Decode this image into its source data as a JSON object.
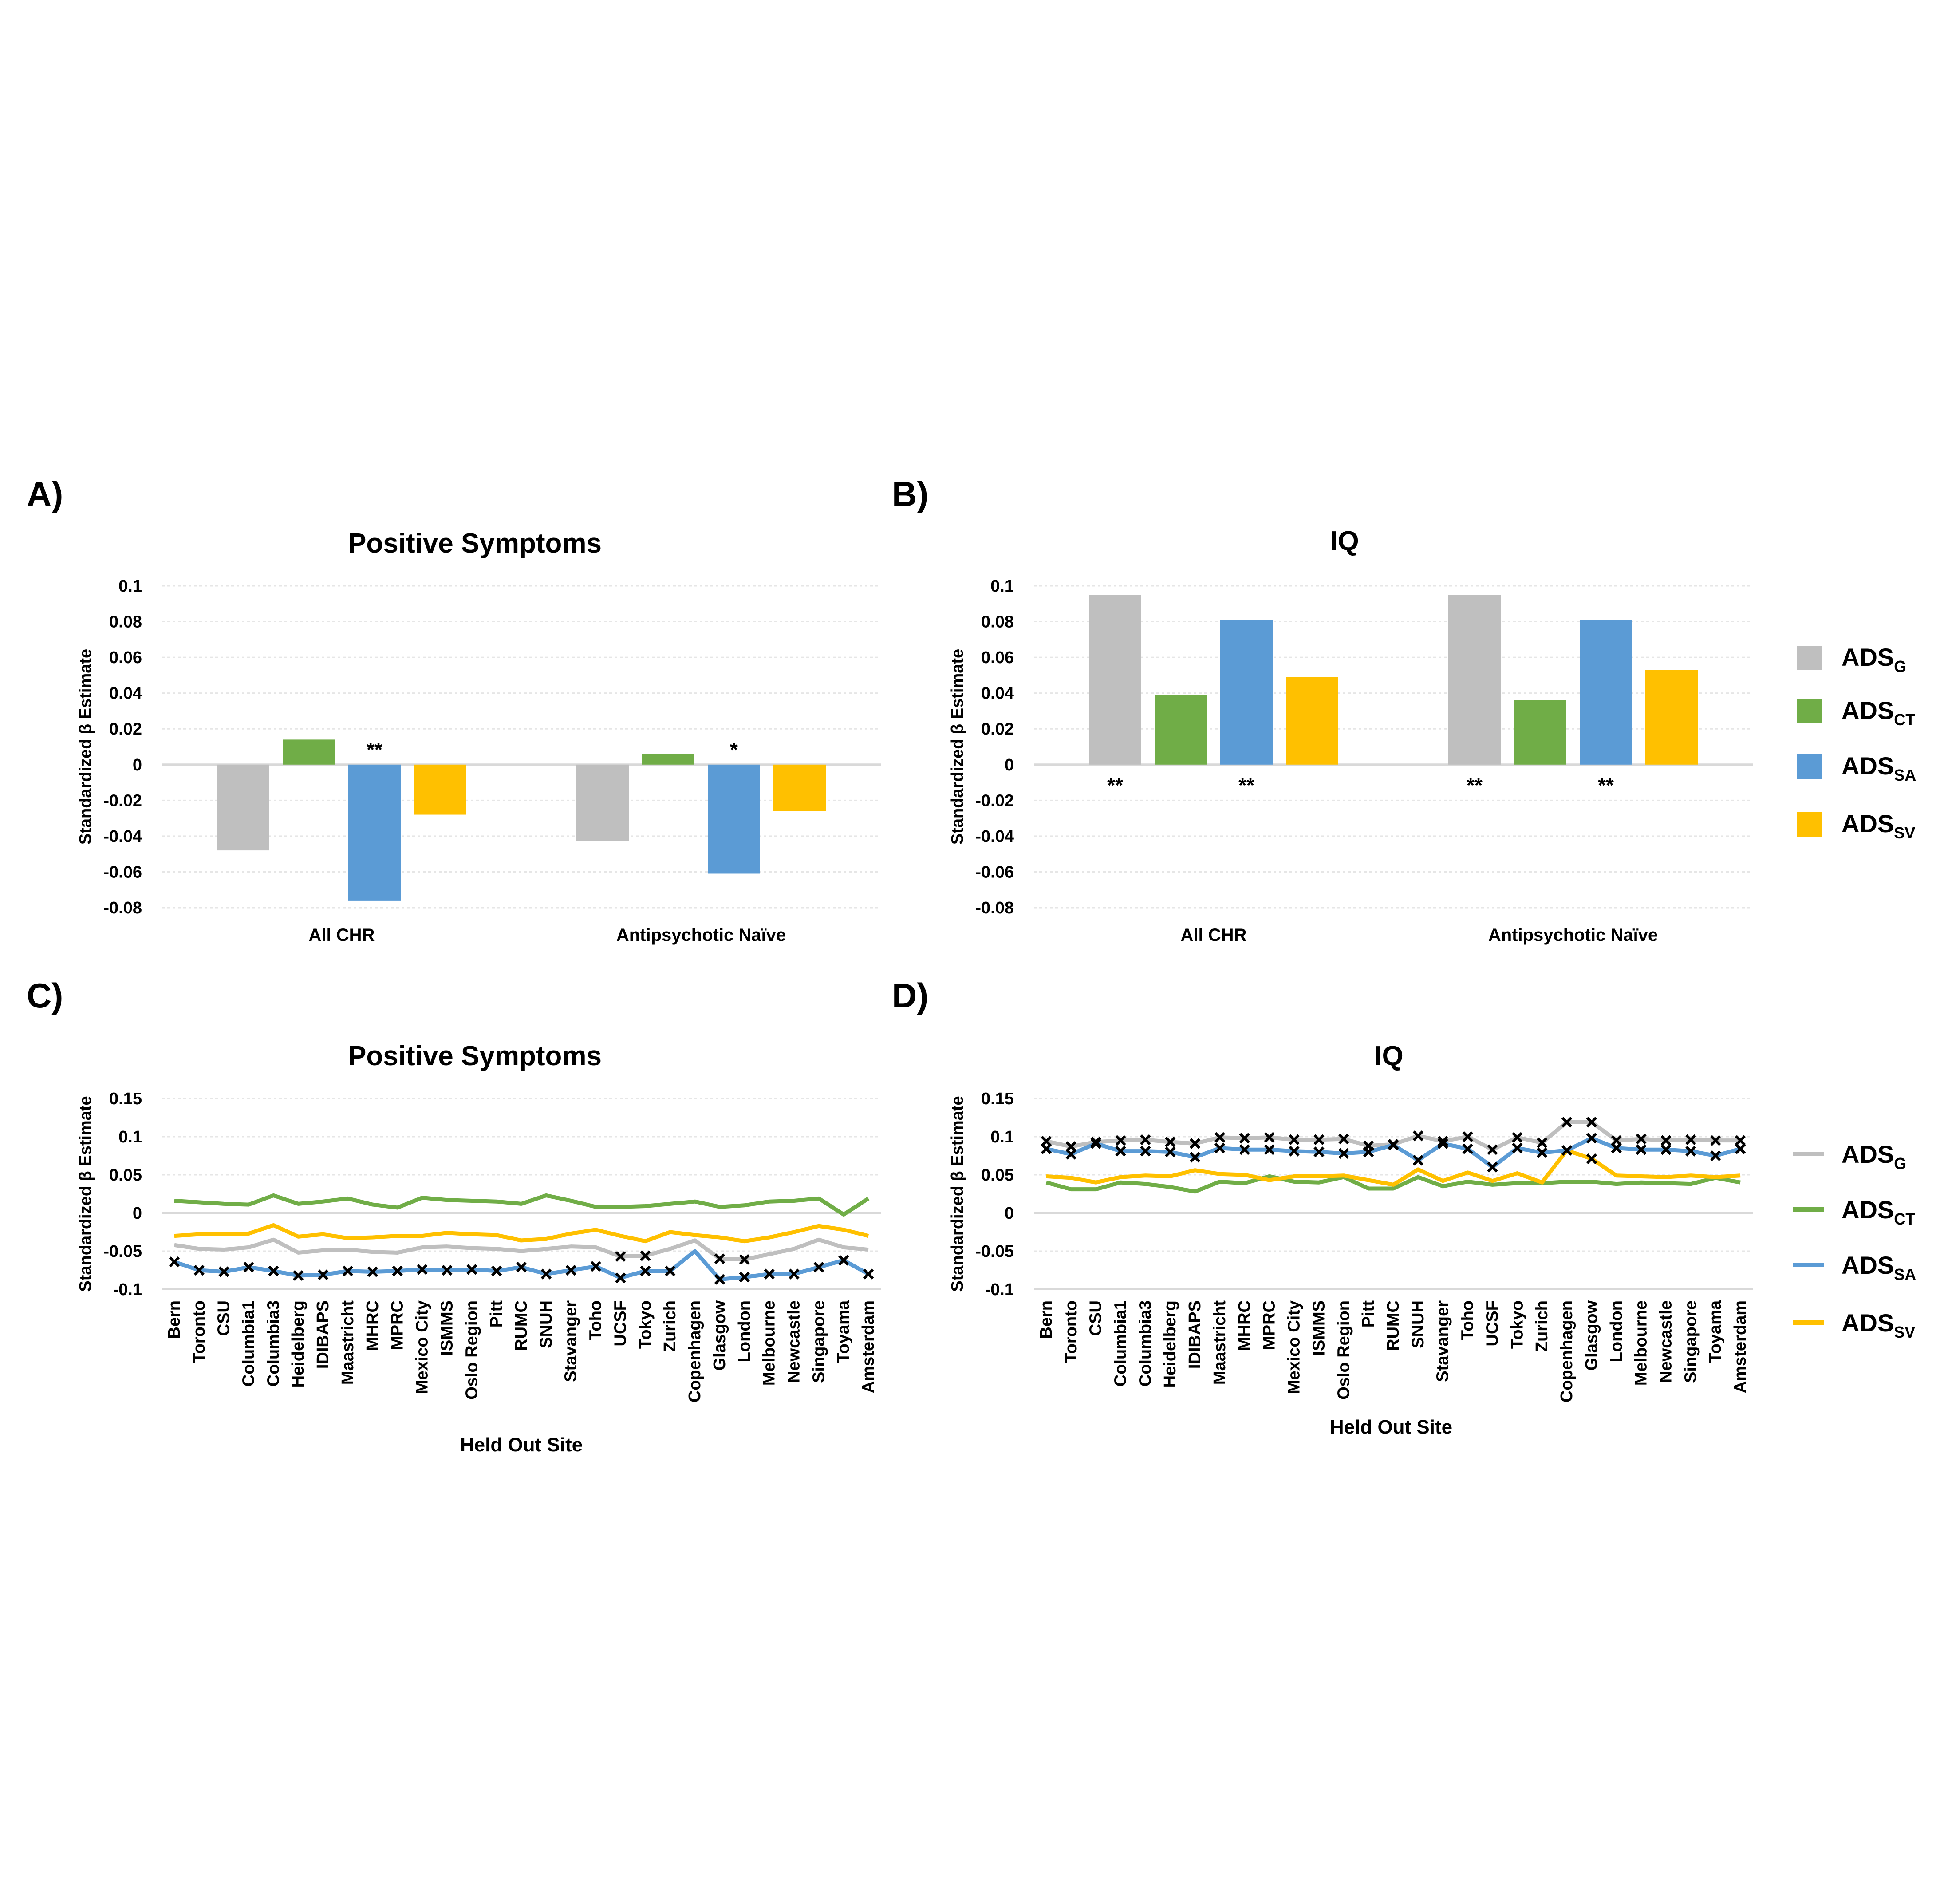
{
  "panel_labels": [
    "A)",
    "B)",
    "C)",
    "D)"
  ],
  "legend": {
    "items": [
      {
        "base": "ADS",
        "sub": "G",
        "color": "#bfbfbf"
      },
      {
        "base": "ADS",
        "sub": "CT",
        "color": "#70ad47"
      },
      {
        "base": "ADS",
        "sub": "SA",
        "color": "#5b9bd5"
      },
      {
        "base": "ADS",
        "sub": "SV",
        "color": "#ffc000"
      }
    ]
  },
  "chart_data": [
    {
      "type": "bar",
      "title": "Positive Symptoms",
      "ylabel": "Standardized β Estimate",
      "xlabel": "",
      "ylim": [
        -0.08,
        0.1
      ],
      "yticks": [
        0.1,
        0.08,
        0.06,
        0.04,
        0.02,
        0,
        -0.02,
        -0.04,
        -0.06,
        -0.08
      ],
      "ytick_labels": [
        "0.1",
        "0.08",
        "0.06",
        "0.04",
        "0.02",
        "0",
        "-0.02",
        "-0.04",
        "-0.06",
        "-0.08"
      ],
      "categories": [
        "All CHR",
        "Antipsychotic Naïve"
      ],
      "series": [
        {
          "name": "ADS_G",
          "values": [
            -0.048,
            -0.043
          ],
          "stars": [
            "",
            ""
          ]
        },
        {
          "name": "ADS_CT",
          "values": [
            0.014,
            0.006
          ],
          "stars": [
            "",
            ""
          ]
        },
        {
          "name": "ADS_SA",
          "values": [
            -0.076,
            -0.061
          ],
          "stars": [
            "**",
            "*"
          ]
        },
        {
          "name": "ADS_SV",
          "values": [
            -0.028,
            -0.026
          ],
          "stars": [
            "",
            ""
          ]
        }
      ]
    },
    {
      "type": "bar",
      "title": "IQ",
      "ylabel": "Standardized β Estimate",
      "xlabel": "",
      "ylim": [
        -0.08,
        0.1
      ],
      "yticks": [
        0.1,
        0.08,
        0.06,
        0.04,
        0.02,
        0,
        -0.02,
        -0.04,
        -0.06,
        -0.08
      ],
      "ytick_labels": [
        "0.1",
        "0.08",
        "0.06",
        "0.04",
        "0.02",
        "0",
        "-0.02",
        "-0.04",
        "-0.06",
        "-0.08"
      ],
      "categories": [
        "All CHR",
        "Antipsychotic Naïve"
      ],
      "series": [
        {
          "name": "ADS_G",
          "values": [
            0.095,
            0.095
          ],
          "stars": [
            "**",
            "**"
          ]
        },
        {
          "name": "ADS_CT",
          "values": [
            0.039,
            0.036
          ],
          "stars": [
            "",
            ""
          ]
        },
        {
          "name": "ADS_SA",
          "values": [
            0.081,
            0.081
          ],
          "stars": [
            "**",
            "**"
          ]
        },
        {
          "name": "ADS_SV",
          "values": [
            0.049,
            0.053
          ],
          "stars": [
            "",
            ""
          ]
        }
      ]
    },
    {
      "type": "line",
      "title": "Positive Symptoms",
      "ylabel": "Standardized β Estimate",
      "xlabel": "Held Out Site",
      "ylim": [
        -0.1,
        0.15
      ],
      "yticks": [
        0.15,
        0.1,
        0.05,
        0,
        -0.05,
        -0.1
      ],
      "ytick_labels": [
        "0.15",
        "0.1",
        "0.05",
        "0",
        "-0.05",
        "-0.1"
      ],
      "categories": [
        "Bern",
        "Toronto",
        "CSU",
        "Columbia1",
        "Columbia3",
        "Heidelberg",
        "IDIBAPS",
        "Maastricht",
        "MHRC",
        "MPRC",
        "Mexico City",
        "ISMMS",
        "Oslo Region",
        "Pitt",
        "RUMC",
        "SNUH",
        "Stavanger",
        "Toho",
        "UCSF",
        "Tokyo",
        "Zurich",
        "Copenhagen",
        "Glasgow",
        "London",
        "Melbourne",
        "Newcastle",
        "Singapore",
        "Toyama",
        "Amsterdam"
      ],
      "series": [
        {
          "name": "ADS_G",
          "values": [
            -0.042,
            -0.047,
            -0.048,
            -0.045,
            -0.035,
            -0.052,
            -0.049,
            -0.048,
            -0.051,
            -0.052,
            -0.045,
            -0.044,
            -0.046,
            -0.047,
            -0.05,
            -0.047,
            -0.044,
            -0.045,
            -0.057,
            -0.056,
            -0.047,
            -0.036,
            -0.06,
            -0.061,
            -0.054,
            -0.047,
            -0.035,
            -0.045,
            -0.048
          ],
          "markers": [
            false,
            false,
            false,
            false,
            false,
            false,
            false,
            false,
            false,
            false,
            false,
            false,
            false,
            false,
            false,
            false,
            false,
            false,
            true,
            true,
            false,
            false,
            true,
            true,
            false,
            false,
            false,
            false,
            false
          ]
        },
        {
          "name": "ADS_CT",
          "values": [
            0.016,
            0.014,
            0.012,
            0.011,
            0.023,
            0.012,
            0.015,
            0.019,
            0.011,
            0.007,
            0.02,
            0.017,
            0.016,
            0.015,
            0.012,
            0.023,
            0.016,
            0.008,
            0.008,
            0.009,
            0.012,
            0.015,
            0.008,
            0.01,
            0.015,
            0.016,
            0.019,
            -0.002,
            0.019
          ],
          "markers": []
        },
        {
          "name": "ADS_SA",
          "values": [
            -0.064,
            -0.075,
            -0.077,
            -0.071,
            -0.076,
            -0.082,
            -0.081,
            -0.076,
            -0.077,
            -0.076,
            -0.074,
            -0.075,
            -0.074,
            -0.076,
            -0.071,
            -0.08,
            -0.075,
            -0.07,
            -0.085,
            -0.076,
            -0.076,
            -0.05,
            -0.087,
            -0.084,
            -0.08,
            -0.08,
            -0.071,
            -0.062,
            -0.08
          ],
          "markers": [
            true,
            true,
            true,
            true,
            true,
            true,
            true,
            true,
            true,
            true,
            true,
            true,
            true,
            true,
            true,
            true,
            true,
            true,
            true,
            true,
            true,
            false,
            true,
            true,
            true,
            true,
            true,
            true,
            true
          ]
        },
        {
          "name": "ADS_SV",
          "values": [
            -0.03,
            -0.028,
            -0.027,
            -0.027,
            -0.016,
            -0.031,
            -0.028,
            -0.033,
            -0.032,
            -0.03,
            -0.03,
            -0.026,
            -0.028,
            -0.029,
            -0.036,
            -0.034,
            -0.027,
            -0.022,
            -0.03,
            -0.037,
            -0.025,
            -0.029,
            -0.032,
            -0.037,
            -0.032,
            -0.025,
            -0.017,
            -0.022,
            -0.03
          ],
          "markers": []
        }
      ]
    },
    {
      "type": "line",
      "title": "IQ",
      "ylabel": "Standardized β Estimate",
      "xlabel": "Held Out Site",
      "ylim": [
        -0.1,
        0.15
      ],
      "yticks": [
        0.15,
        0.1,
        0.05,
        0,
        -0.05,
        -0.1
      ],
      "ytick_labels": [
        "0.15",
        "0.1",
        "0.05",
        "0",
        "-0.05",
        "-0.1"
      ],
      "categories": [
        "Bern",
        "Toronto",
        "CSU",
        "Columbia1",
        "Columbia3",
        "Heidelberg",
        "IDIBAPS",
        "Maastricht",
        "MHRC",
        "MPRC",
        "Mexico City",
        "ISMMS",
        "Oslo Region",
        "Pitt",
        "RUMC",
        "SNUH",
        "Stavanger",
        "Toho",
        "UCSF",
        "Tokyo",
        "Zurich",
        "Copenhagen",
        "Glasgow",
        "London",
        "Melbourne",
        "Newcastle",
        "Singapore",
        "Toyama",
        "Amsterdam"
      ],
      "series": [
        {
          "name": "ADS_G",
          "values": [
            0.094,
            0.087,
            0.093,
            0.095,
            0.096,
            0.093,
            0.091,
            0.099,
            0.098,
            0.099,
            0.096,
            0.096,
            0.097,
            0.088,
            0.09,
            0.101,
            0.094,
            0.1,
            0.083,
            0.099,
            0.092,
            0.119,
            0.119,
            0.095,
            0.097,
            0.095,
            0.096,
            0.095,
            0.095
          ],
          "markers": [
            true,
            true,
            true,
            true,
            true,
            true,
            true,
            true,
            true,
            true,
            true,
            true,
            true,
            true,
            true,
            true,
            true,
            true,
            true,
            true,
            true,
            true,
            true,
            true,
            true,
            true,
            true,
            true,
            true
          ]
        },
        {
          "name": "ADS_CT",
          "values": [
            0.04,
            0.031,
            0.031,
            0.04,
            0.038,
            0.034,
            0.028,
            0.041,
            0.039,
            0.048,
            0.041,
            0.04,
            0.047,
            0.032,
            0.032,
            0.047,
            0.035,
            0.041,
            0.037,
            0.039,
            0.039,
            0.041,
            0.041,
            0.038,
            0.04,
            0.039,
            0.038,
            0.046,
            0.04
          ],
          "markers": []
        },
        {
          "name": "ADS_SA",
          "values": [
            0.084,
            0.077,
            0.091,
            0.081,
            0.081,
            0.08,
            0.073,
            0.085,
            0.083,
            0.083,
            0.081,
            0.08,
            0.078,
            0.08,
            0.089,
            0.069,
            0.091,
            0.084,
            0.06,
            0.085,
            0.079,
            0.082,
            0.098,
            0.085,
            0.083,
            0.083,
            0.081,
            0.075,
            0.084
          ],
          "markers": [
            true,
            true,
            true,
            true,
            true,
            true,
            true,
            true,
            true,
            true,
            true,
            true,
            true,
            true,
            true,
            true,
            true,
            true,
            true,
            true,
            true,
            true,
            true,
            true,
            true,
            true,
            true,
            true,
            true
          ]
        },
        {
          "name": "ADS_SV",
          "values": [
            0.048,
            0.046,
            0.04,
            0.047,
            0.049,
            0.048,
            0.056,
            0.051,
            0.05,
            0.043,
            0.048,
            0.048,
            0.049,
            0.043,
            0.037,
            0.057,
            0.042,
            0.053,
            0.042,
            0.052,
            0.04,
            0.082,
            0.071,
            0.049,
            0.048,
            0.047,
            0.049,
            0.047,
            0.049
          ],
          "markers": [
            false,
            false,
            false,
            false,
            false,
            false,
            false,
            false,
            false,
            false,
            false,
            false,
            false,
            false,
            false,
            false,
            false,
            false,
            false,
            false,
            false,
            false,
            true,
            false,
            false,
            false,
            false,
            false,
            false
          ]
        }
      ]
    }
  ]
}
